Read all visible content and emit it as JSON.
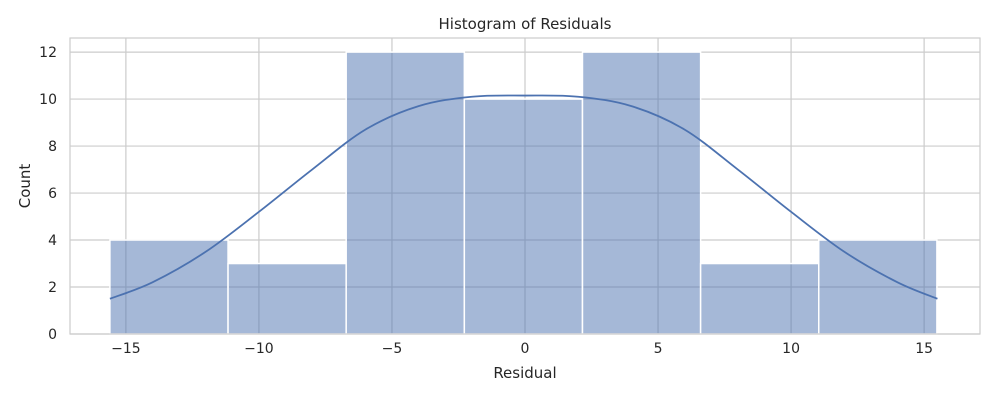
{
  "chart_data": {
    "type": "bar",
    "title": "Histogram of Residuals",
    "xlabel": "Residual",
    "ylabel": "Count",
    "xlim": [
      -17.1,
      17.1
    ],
    "ylim": [
      0,
      12.6
    ],
    "xticks": [
      -15,
      -10,
      -5,
      0,
      5,
      10,
      15
    ],
    "yticks": [
      0,
      2,
      4,
      6,
      8,
      10,
      12
    ],
    "grid": true,
    "bins": [
      {
        "x0": -15.6,
        "x1": -11.16,
        "count": 4
      },
      {
        "x0": -11.16,
        "x1": -6.72,
        "count": 3
      },
      {
        "x0": -6.72,
        "x1": -2.28,
        "count": 12
      },
      {
        "x0": -2.28,
        "x1": 2.16,
        "count": 10
      },
      {
        "x0": 2.16,
        "x1": 6.6,
        "count": 12
      },
      {
        "x0": 6.6,
        "x1": 11.04,
        "count": 3
      },
      {
        "x0": 11.04,
        "x1": 15.48,
        "count": 4
      }
    ],
    "kde": {
      "x": [
        -15.6,
        -14,
        -12,
        -10,
        -8,
        -6,
        -4,
        -2,
        0,
        2,
        4,
        6,
        8,
        10,
        12,
        14,
        15.5
      ],
      "y": [
        1.5,
        2.2,
        3.5,
        5.2,
        7.0,
        8.7,
        9.7,
        10.1,
        10.15,
        10.1,
        9.7,
        8.7,
        7.0,
        5.2,
        3.5,
        2.2,
        1.5
      ]
    },
    "colors": {
      "bar_fill": "#4c72b0",
      "bar_opacity": 0.5,
      "kde_line": "#4c72b0",
      "grid": "#cccccc",
      "frame": "#cccccc"
    }
  }
}
